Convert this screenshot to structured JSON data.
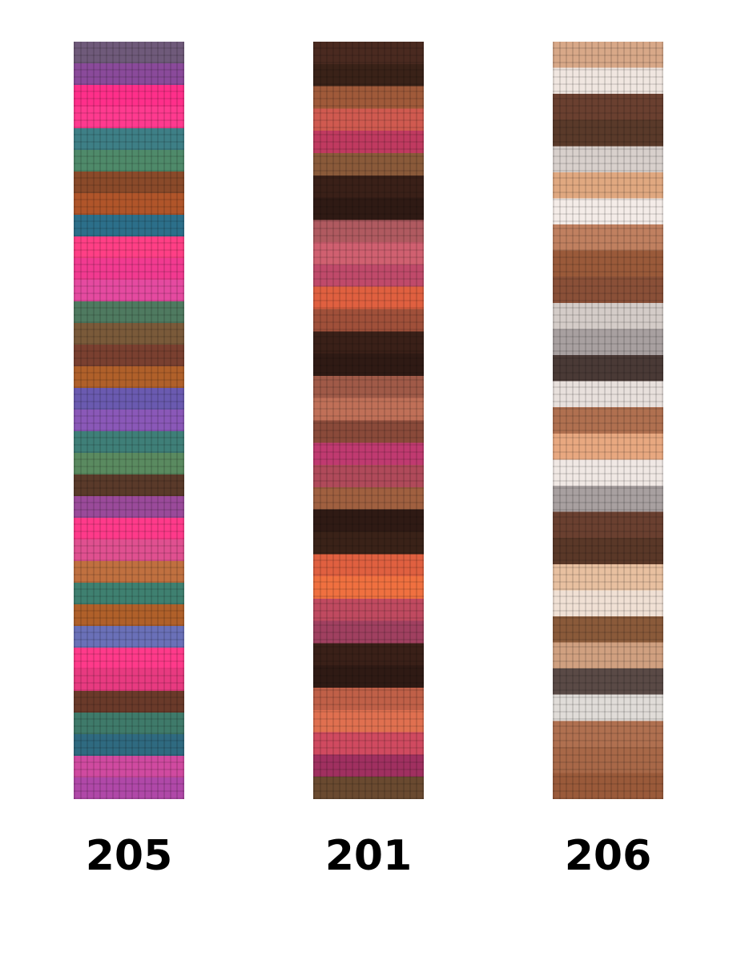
{
  "swatches": [
    {
      "label": "205",
      "stripe_colors": [
        "#6f5a7a",
        "#8a4a9a",
        "#ff2f8a",
        "#ff3a8f",
        "#3e7f86",
        "#4f8a6a",
        "#8a4a2a",
        "#b0552a",
        "#2c6f8a",
        "#ff3f85",
        "#f23a90",
        "#e54aa0",
        "#4f7a60",
        "#7a5a3a",
        "#7a4030",
        "#b0602a",
        "#6a5ab0",
        "#8a58b8",
        "#3f7f78",
        "#5a8a60",
        "#5a3a2a",
        "#9a4a9a",
        "#ff3a8a",
        "#e05090",
        "#c07040",
        "#3f8070",
        "#b0602a",
        "#6a70b8",
        "#ff3a8a",
        "#e83a80",
        "#6a3a2a",
        "#3f7a6a",
        "#2f6a80",
        "#d04aa0",
        "#b048a8"
      ]
    },
    {
      "label": "201",
      "stripe_colors": [
        "#4a2a20",
        "#3a2218",
        "#a05a3a",
        "#d05a50",
        "#c03a60",
        "#8a5a3a",
        "#3a2018",
        "#2f1a14",
        "#b05a60",
        "#d06070",
        "#c04a6a",
        "#e06040",
        "#a0503a",
        "#3a2018",
        "#2f1a14",
        "#a05a48",
        "#c07058",
        "#8a4a3a",
        "#c03a70",
        "#b04a5a",
        "#a06040",
        "#2f1a14",
        "#3a2218",
        "#e06040",
        "#f07040",
        "#c04a60",
        "#a04060",
        "#3a2018",
        "#2f1a14",
        "#c06048",
        "#e07050",
        "#d04a60",
        "#a03060",
        "#6a4a30"
      ]
    },
    {
      "label": "206",
      "stripe_colors": [
        "#d8a888",
        "#f0e6e0",
        "#6a4030",
        "#5a3a2a",
        "#d8d0cc",
        "#e0a880",
        "#f4ece8",
        "#c08060",
        "#9a5a3a",
        "#8a5038",
        "#d4ccc8",
        "#a8a0a0",
        "#4a3a36",
        "#e8e0dc",
        "#b07050",
        "#e8a880",
        "#f0e8e4",
        "#a8a0a0",
        "#6a4030",
        "#5a3828",
        "#e8c0a0",
        "#f0e0d4",
        "#8a5a3a",
        "#d0a080",
        "#5a4a46",
        "#e0dcd8",
        "#b07050",
        "#a86848",
        "#9a5a3a"
      ]
    }
  ]
}
